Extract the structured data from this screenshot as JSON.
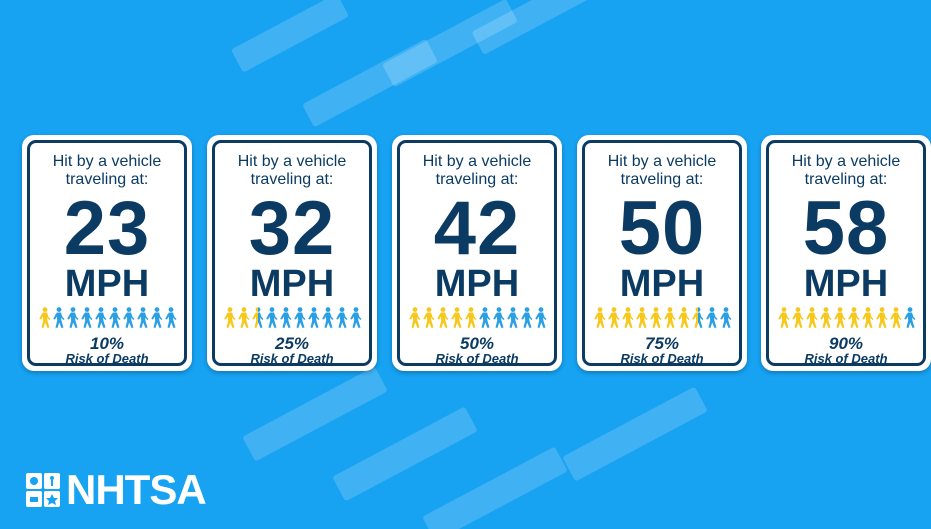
{
  "cards": [
    {
      "heading": "Hit by a vehicle traveling at:",
      "speed": 23,
      "unit": "MPH",
      "risk": 10,
      "risk_label": "10%",
      "caption": "Risk of Death"
    },
    {
      "heading": "Hit by a vehicle traveling at:",
      "speed": 32,
      "unit": "MPH",
      "risk": 25,
      "risk_label": "25%",
      "caption": "Risk of Death"
    },
    {
      "heading": "Hit by a vehicle traveling at:",
      "speed": 42,
      "unit": "MPH",
      "risk": 50,
      "risk_label": "50%",
      "caption": "Risk of Death"
    },
    {
      "heading": "Hit by a vehicle traveling at:",
      "speed": 50,
      "unit": "MPH",
      "risk": 75,
      "risk_label": "75%",
      "caption": "Risk of Death"
    },
    {
      "heading": "Hit by a vehicle traveling at:",
      "speed": 58,
      "unit": "MPH",
      "risk": 90,
      "risk_label": "90%",
      "caption": "Risk of Death"
    }
  ],
  "logo": "NHTSA"
}
